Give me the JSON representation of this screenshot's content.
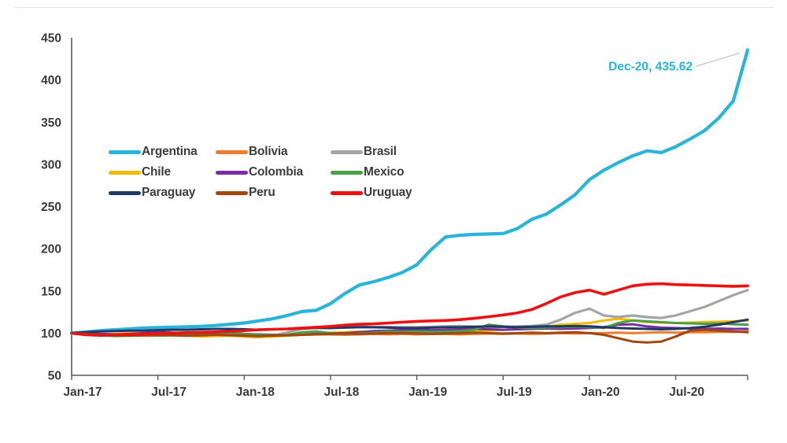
{
  "chart_data": {
    "type": "line",
    "title": "",
    "xlabel": "",
    "ylabel": "",
    "x_unit": "month",
    "x_range": [
      "Jan-17",
      "Dec-20"
    ],
    "x_tick_labels": [
      "Jan-17",
      "Jul-17",
      "Jan-18",
      "Jul-18",
      "Jan-19",
      "Jul-19",
      "Jan-20",
      "Jul-20"
    ],
    "x_tick_indices": [
      0,
      6,
      12,
      18,
      24,
      30,
      36,
      42
    ],
    "ylim": [
      50,
      450
    ],
    "y_tick_step": 50,
    "y_tick_labels": [
      "50",
      "100",
      "150",
      "200",
      "250",
      "300",
      "350",
      "400",
      "450"
    ],
    "grid": false,
    "legend_position": "inside-upper-left",
    "axis_color": "#595959",
    "tick_label_color": "#3b3b3b",
    "annotation": {
      "label": "Dec-20, 435.62",
      "series": "Argentina",
      "x": "Dec-20",
      "value": 435.62,
      "color": "#29b4d9",
      "leader_color": "#b3b3b3"
    },
    "series": [
      {
        "name": "Argentina",
        "color": "#29b4d9",
        "width": 4.2,
        "values": [
          100,
          101.5,
          103,
          104,
          105,
          106,
          106.5,
          107,
          107.5,
          108,
          109,
          110.5,
          112,
          114.5,
          117,
          121,
          125.5,
          127,
          135,
          147,
          157,
          161,
          166,
          172,
          181,
          199,
          214,
          216,
          217,
          217.5,
          218,
          224,
          235,
          241,
          252,
          264,
          282,
          293,
          302,
          310,
          316,
          314,
          321,
          330,
          340,
          355,
          375,
          435.62
        ]
      },
      {
        "name": "Bolivia",
        "color": "#ed7d31",
        "width": 3,
        "values": [
          100,
          99,
          98.5,
          98,
          97.5,
          97,
          97,
          97.5,
          97,
          97.5,
          98,
          97.5,
          97.5,
          98,
          98,
          98.5,
          98,
          98.5,
          98.5,
          98,
          98.5,
          99,
          98.5,
          99,
          98.5,
          99,
          99,
          98.5,
          99,
          99.5,
          99,
          99.5,
          99,
          99.5,
          100,
          99.5,
          100,
          100,
          100.5,
          100,
          100.5,
          101,
          100.5,
          101,
          101,
          101.5,
          101.5,
          102
        ]
      },
      {
        "name": "Brasil",
        "color": "#a5a5a5",
        "width": 3.2,
        "values": [
          100,
          98,
          97,
          97.5,
          99,
          100,
          99.5,
          98,
          97,
          98,
          100,
          98,
          96,
          95,
          97,
          101,
          105,
          107,
          106,
          107.5,
          108,
          107,
          107.5,
          107,
          107,
          107.5,
          108,
          108.5,
          107.5,
          107,
          107.5,
          108,
          108.5,
          110,
          116,
          124,
          129,
          121,
          119,
          121,
          119,
          118,
          121,
          126,
          131,
          138,
          145,
          151
        ]
      },
      {
        "name": "Chile",
        "color": "#f1b900",
        "width": 3,
        "values": [
          100,
          99,
          98.5,
          99,
          100,
          99.5,
          99,
          98,
          97,
          96,
          96.5,
          97,
          96,
          95.5,
          96,
          97,
          98,
          99.5,
          100.5,
          101,
          102,
          101.5,
          101,
          102,
          101,
          100.5,
          101,
          101.5,
          102,
          103,
          104,
          105.5,
          107,
          107.5,
          110,
          111,
          112,
          115,
          117,
          115,
          113,
          112.5,
          112,
          112.5,
          113,
          113.5,
          114,
          115
        ]
      },
      {
        "name": "Colombia",
        "color": "#7a2ea0",
        "width": 3,
        "values": [
          100,
          99.5,
          99,
          98.5,
          99,
          100,
          101,
          100.5,
          100,
          99.5,
          100,
          100.5,
          99,
          98.5,
          98,
          97.5,
          98,
          99,
          99.5,
          100,
          101,
          102.5,
          103,
          103.5,
          104,
          103.5,
          104,
          104.5,
          105,
          104.5,
          104,
          104.5,
          105,
          105.5,
          105,
          105.5,
          106,
          107,
          110,
          110.5,
          108,
          106.5,
          106,
          105.5,
          105,
          105.5,
          105,
          105
        ]
      },
      {
        "name": "Mexico",
        "color": "#4a9e48",
        "width": 3,
        "values": [
          100,
          99,
          97.5,
          96.5,
          97,
          98.5,
          97,
          97.5,
          98,
          99.5,
          101,
          100,
          99,
          98,
          97.5,
          98,
          101,
          102,
          100,
          99,
          99.5,
          100.5,
          102,
          101.5,
          102,
          101.5,
          102,
          102.5,
          104,
          110,
          108,
          106.5,
          106,
          106.5,
          107,
          107.5,
          107,
          106,
          112,
          115,
          114,
          113,
          112,
          111.5,
          111,
          111.5,
          110.5,
          110
        ]
      },
      {
        "name": "Paraguay",
        "color": "#1f3864",
        "width": 3,
        "values": [
          100,
          101,
          102,
          102.5,
          103,
          103,
          103.5,
          104,
          104,
          104.5,
          105,
          105,
          104.5,
          104,
          104.5,
          105,
          105.5,
          106,
          106,
          106.5,
          107,
          107,
          106.5,
          106,
          106,
          106.5,
          107,
          107,
          107.5,
          108,
          107.5,
          107,
          107.5,
          108,
          108,
          108.5,
          108,
          107,
          106,
          105.5,
          105,
          104.5,
          105,
          106,
          107.5,
          110,
          113,
          116
        ]
      },
      {
        "name": "Peru",
        "color": "#a0480e",
        "width": 3,
        "values": [
          100,
          99,
          98,
          97.5,
          97,
          97.5,
          98,
          97.5,
          97,
          97.5,
          98,
          97.5,
          97,
          96.5,
          97,
          97.5,
          98,
          98.5,
          99,
          99.5,
          99,
          99.5,
          100,
          100,
          99.5,
          99,
          99.5,
          100,
          100.5,
          100,
          99.5,
          100,
          100.5,
          100,
          100.5,
          101,
          100,
          98,
          94,
          90,
          89,
          90,
          96,
          103,
          104,
          103,
          102,
          101
        ]
      },
      {
        "name": "Uruguay",
        "color": "#ee1111",
        "width": 3.6,
        "values": [
          100,
          98,
          97.5,
          98,
          98.5,
          99,
          99.5,
          100,
          100.5,
          101,
          101.5,
          102,
          103,
          104,
          104.5,
          105,
          106,
          107,
          108,
          109.5,
          110.5,
          111,
          112,
          113,
          114,
          114.5,
          115,
          116,
          117.5,
          119.5,
          121.5,
          124,
          128,
          135,
          143,
          148,
          151,
          146,
          151,
          156,
          158,
          158.5,
          157.5,
          157,
          156.5,
          156,
          155.5,
          156
        ]
      }
    ]
  }
}
